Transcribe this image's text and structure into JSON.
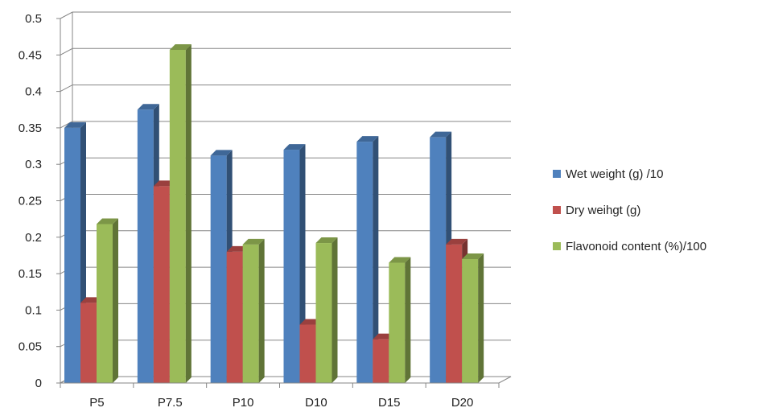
{
  "chart_data": {
    "type": "bar",
    "style": "3d-clustered-column",
    "categories": [
      "P5",
      "P7.5",
      "P10",
      "D10",
      "D15",
      "D20"
    ],
    "series": [
      {
        "name": "Wet weight (g) /10",
        "color": "#4F81BD",
        "values": [
          0.35,
          0.375,
          0.312,
          0.32,
          0.331,
          0.337
        ]
      },
      {
        "name": "Dry weihgt (g)",
        "color": "#C0504D",
        "values": [
          0.11,
          0.27,
          0.18,
          0.08,
          0.06,
          0.19
        ]
      },
      {
        "name": "Flavonoid content (%)/100",
        "color": "#9BBB59",
        "values": [
          0.218,
          0.457,
          0.19,
          0.192,
          0.165,
          0.17
        ]
      }
    ],
    "yticks": [
      "0",
      "0.05",
      "0.1",
      "0.15",
      "0.2",
      "0.25",
      "0.3",
      "0.35",
      "0.4",
      "0.45",
      "0.5"
    ],
    "ylim": [
      0,
      0.5
    ],
    "grid": true,
    "legend": "right"
  }
}
